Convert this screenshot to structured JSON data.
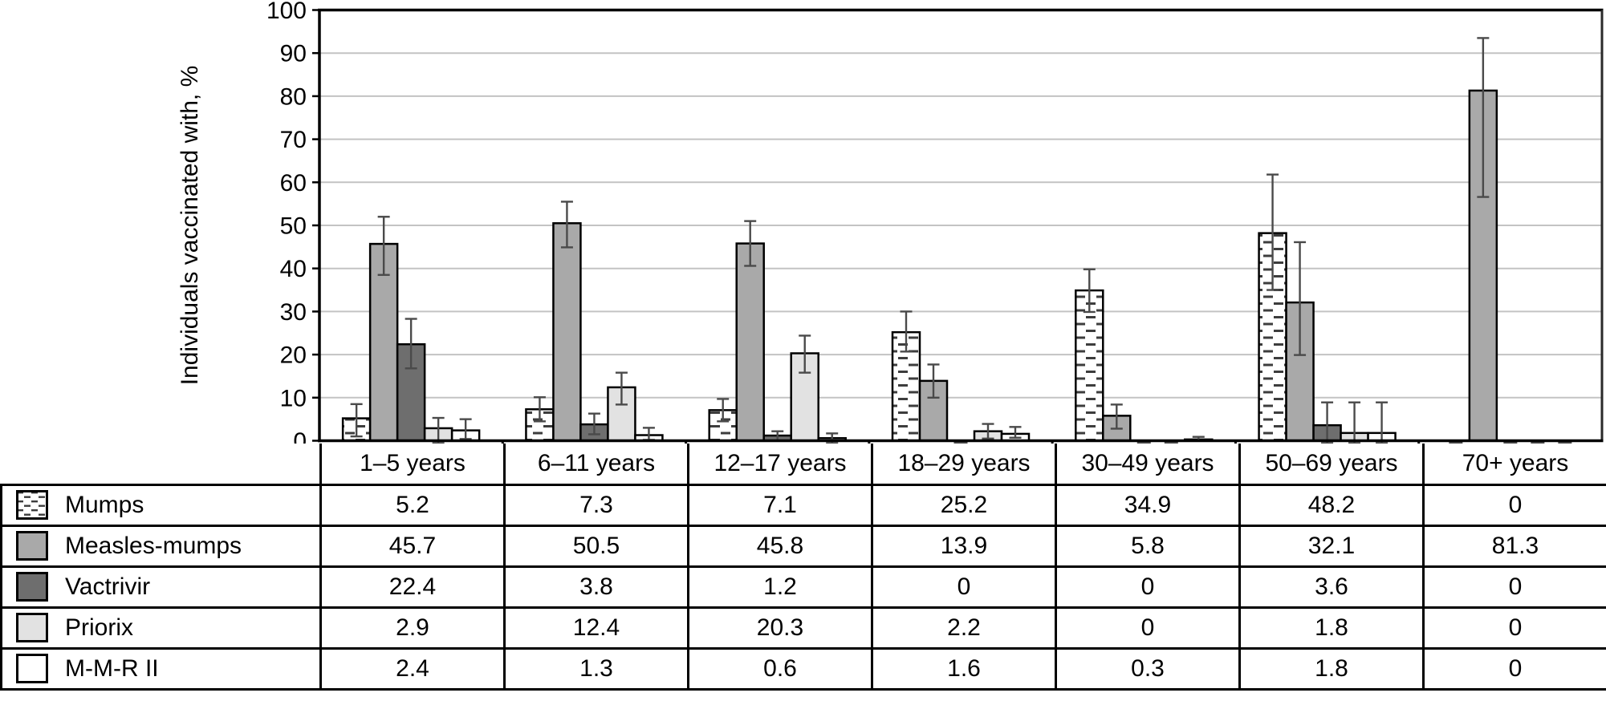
{
  "figure": {
    "kind": "grouped-bar-chart-with-data-table"
  },
  "chart_data": {
    "type": "bar",
    "title": "",
    "xlabel": "",
    "ylabel": "Individuals vaccinated with,  %",
    "ylim": [
      0,
      100
    ],
    "ytick_step": 10,
    "ytick_labels": [
      "0",
      "10",
      "20",
      "30",
      "40",
      "50",
      "60",
      "70",
      "80",
      "90",
      "100"
    ],
    "grid": true,
    "legend_position": "table-left-column",
    "categories": [
      "1–5 years",
      "6–11 years",
      "12–17 years",
      "18–29 years",
      "30–49 years",
      "50–69 years",
      "70+ years"
    ],
    "series": [
      {
        "name": "Mumps",
        "fill": "dash-pattern",
        "values": [
          5.2,
          7.3,
          7.1,
          25.2,
          34.9,
          48.2,
          0
        ],
        "err_lo": [
          1.0,
          4.5,
          4.5,
          20.7,
          29.9,
          35.0,
          0
        ],
        "err_hi": [
          8.5,
          10.1,
          9.7,
          30.0,
          39.8,
          61.8,
          0
        ]
      },
      {
        "name": "Measles-mumps",
        "fill": "#a9a9a9",
        "values": [
          45.7,
          50.5,
          45.8,
          13.9,
          5.8,
          32.1,
          81.3
        ],
        "err_lo": [
          38.5,
          44.9,
          40.6,
          10.0,
          2.8,
          19.9,
          56.6
        ],
        "err_hi": [
          52.0,
          55.5,
          51.0,
          17.7,
          8.4,
          46.1,
          93.5
        ]
      },
      {
        "name": "Vactrivir",
        "fill": "#6e6e6e",
        "values": [
          22.4,
          3.8,
          1.2,
          0,
          0,
          3.6,
          0
        ],
        "err_lo": [
          16.8,
          1.5,
          0.0,
          0,
          0,
          -0.6,
          0
        ],
        "err_hi": [
          28.3,
          6.3,
          2.2,
          0,
          0,
          8.9,
          0
        ]
      },
      {
        "name": "Priorix",
        "fill": "#e2e2e2",
        "values": [
          2.9,
          12.4,
          20.3,
          2.2,
          0,
          1.8,
          0
        ],
        "err_lo": [
          -1.2,
          8.4,
          15.8,
          0.5,
          0,
          -0.6,
          0
        ],
        "err_hi": [
          5.3,
          15.8,
          24.4,
          3.9,
          0,
          8.9,
          0
        ]
      },
      {
        "name": "M-M-R II",
        "fill": "#ffffff",
        "values": [
          2.4,
          1.3,
          0.6,
          1.6,
          0.3,
          1.8,
          0
        ],
        "err_lo": [
          0.4,
          0.2,
          -0.7,
          0.7,
          0.0,
          -0.6,
          0
        ],
        "err_hi": [
          5.0,
          3.0,
          1.7,
          3.2,
          0.9,
          8.9,
          0
        ]
      }
    ]
  },
  "colors": {
    "axis": "#000000",
    "grid": "#c3c3c3",
    "plot_right_border": "#2a2a2a",
    "error_bar": "#4a4a4a",
    "mumps_dash": "#3d3d3d",
    "table_border": "#000000",
    "background": "#ffffff"
  }
}
